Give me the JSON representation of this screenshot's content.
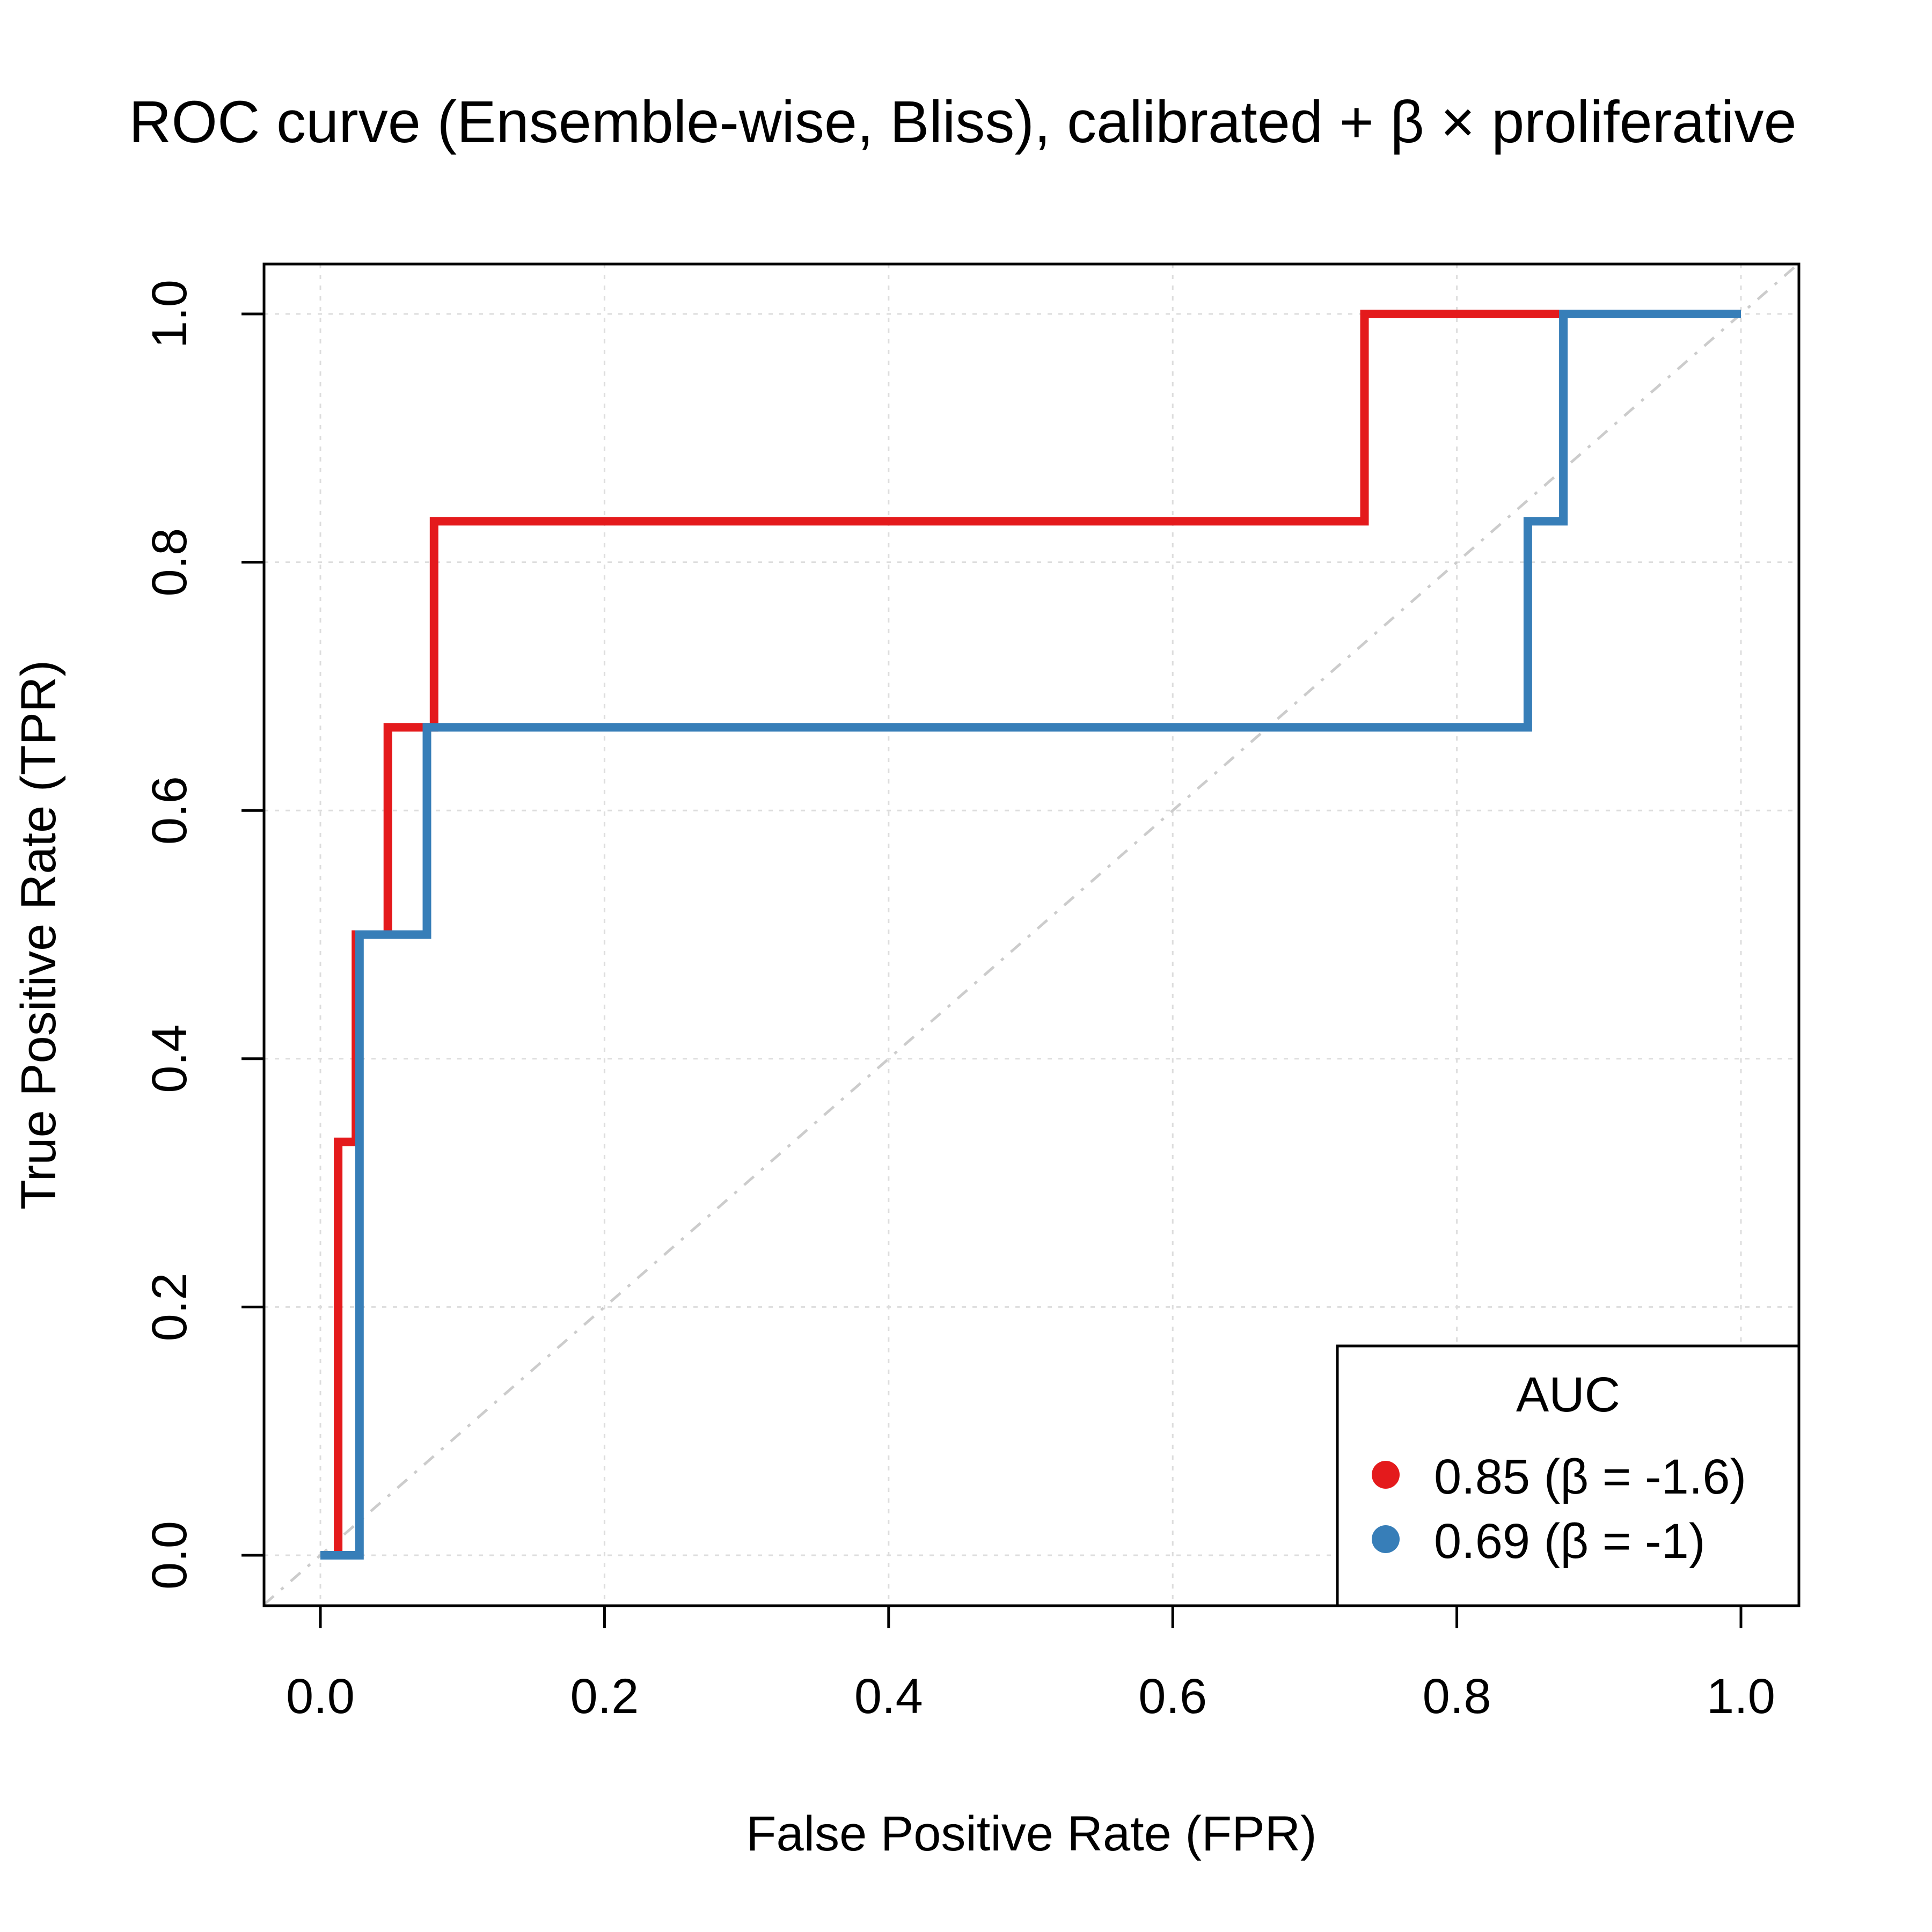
{
  "chart_data": {
    "type": "line",
    "title": "ROC curve (Ensemble-wise, Bliss), calibrated + β × proliferative",
    "xlabel": "False Positive Rate (FPR)",
    "ylabel": "True Positive Rate (TPR)",
    "xlim": [
      0,
      1
    ],
    "ylim": [
      0,
      1
    ],
    "xticks": [
      "0.0",
      "0.2",
      "0.4",
      "0.6",
      "0.8",
      "1.0"
    ],
    "yticks": [
      "0.0",
      "0.2",
      "0.4",
      "0.6",
      "0.8",
      "1.0"
    ],
    "grid": true,
    "diagonal_reference": true,
    "legend": {
      "title": "AUC",
      "position": "bottom-right"
    },
    "series": [
      {
        "name": "0.85 (β = -1.6)",
        "color": "#e41a1c",
        "x": [
          0.0,
          0.0125,
          0.0125,
          0.025,
          0.025,
          0.0475,
          0.0475,
          0.08,
          0.08,
          0.735,
          0.735,
          0.875
        ],
        "y": [
          0.0,
          0.0,
          0.333,
          0.333,
          0.5,
          0.5,
          0.667,
          0.667,
          0.833,
          0.833,
          1.0,
          1.0
        ]
      },
      {
        "name": "0.69 (β = -1)",
        "color": "#377eb8",
        "x": [
          0.0,
          0.0275,
          0.0275,
          0.075,
          0.075,
          0.85,
          0.85,
          0.875,
          0.875,
          1.0
        ],
        "y": [
          0.0,
          0.0,
          0.5,
          0.5,
          0.667,
          0.667,
          0.833,
          0.833,
          1.0,
          1.0
        ]
      }
    ]
  }
}
